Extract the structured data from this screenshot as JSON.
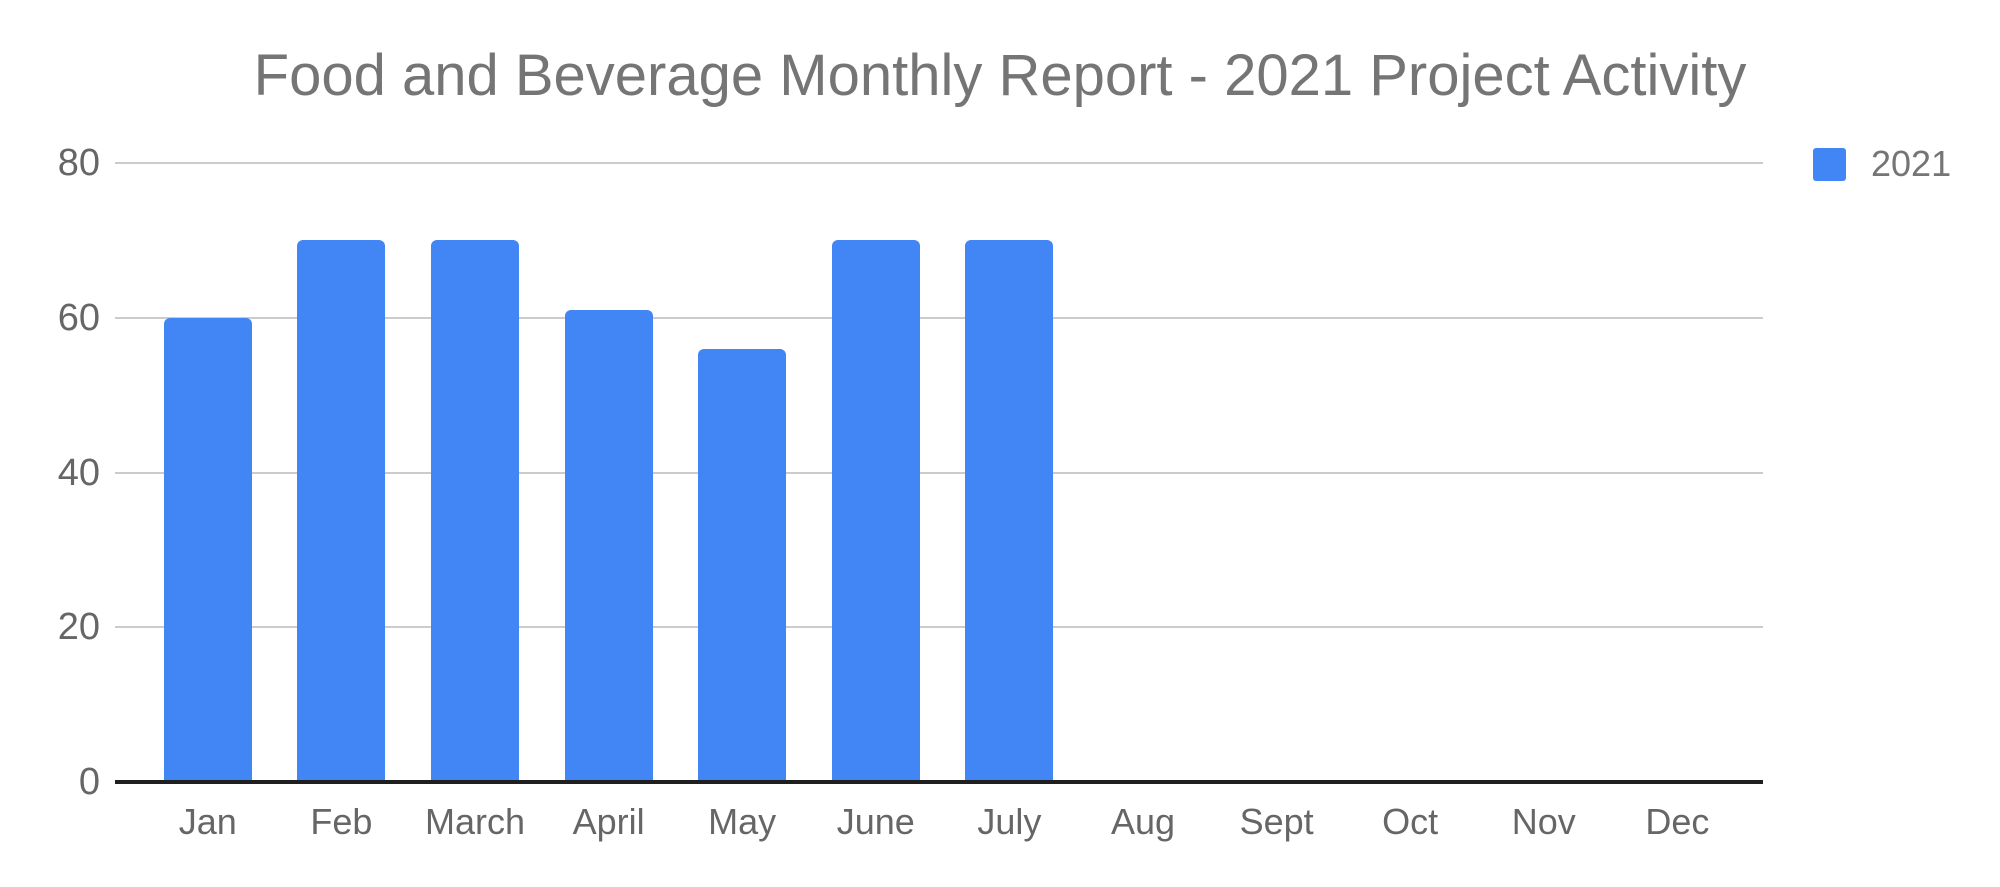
{
  "chart_data": {
    "type": "bar",
    "title": "Food and Beverage Monthly Report - 2021 Project Activity",
    "categories": [
      "Jan",
      "Feb",
      "March",
      "April",
      "May",
      "June",
      "July",
      "Aug",
      "Sept",
      "Oct",
      "Nov",
      "Dec"
    ],
    "series": [
      {
        "name": "2021",
        "values": [
          60,
          70,
          70,
          61,
          56,
          70,
          70,
          0,
          0,
          0,
          0,
          0
        ],
        "color": "#4285F4"
      }
    ],
    "xlabel": "",
    "ylabel": "",
    "ylim": [
      0,
      80
    ],
    "yticks": [
      0,
      20,
      40,
      60,
      80
    ],
    "grid": true,
    "legend_position": "top-right",
    "colors": {
      "bar": "#4285F4",
      "title_text": "#757575",
      "legend_text": "#757575",
      "axis_text": "#666666",
      "gridline": "#cccccc",
      "baseline": "#1f1f1f",
      "background": "#ffffff"
    }
  }
}
